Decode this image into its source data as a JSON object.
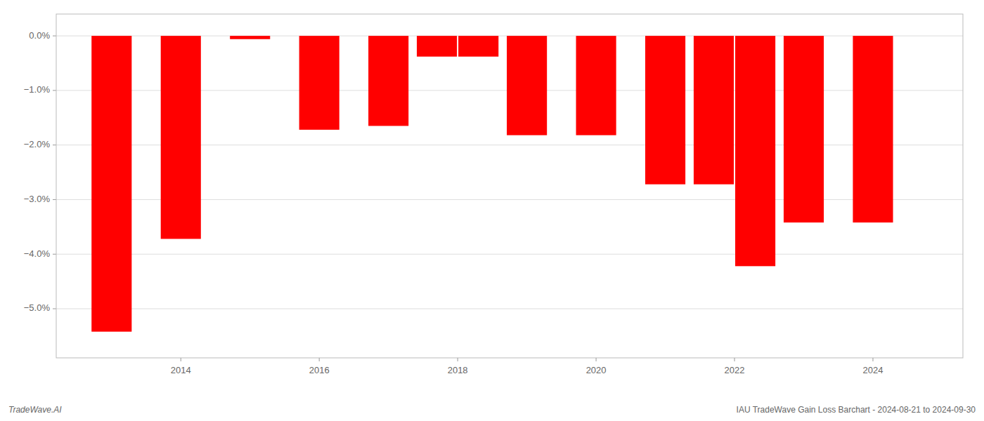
{
  "chart_data": {
    "type": "bar",
    "x": [
      2013,
      2014,
      2015,
      2016,
      2017,
      2017.7,
      2018.3,
      2019,
      2020,
      2021,
      2021.7,
      2022.3,
      2023,
      2024
    ],
    "values": [
      -5.42,
      -3.72,
      -0.06,
      -1.72,
      -1.65,
      -0.38,
      -0.38,
      -1.82,
      -1.82,
      -2.72,
      -2.72,
      -4.22,
      -3.42,
      -3.42
    ],
    "color": "#ff0000",
    "xlim": [
      2012.2,
      2025.3
    ],
    "xticks": [
      2014,
      2016,
      2018,
      2020,
      2022,
      2024
    ],
    "ylim": [
      -5.9,
      0.4
    ],
    "yticks": [
      {
        "value": 0.0,
        "label": "0.0%"
      },
      {
        "value": -1.0,
        "label": "−1.0%"
      },
      {
        "value": -2.0,
        "label": "−2.0%"
      },
      {
        "value": -3.0,
        "label": "−3.0%"
      },
      {
        "value": -4.0,
        "label": "−4.0%"
      },
      {
        "value": -5.0,
        "label": "−5.0%"
      }
    ],
    "grid": true,
    "annotations": [
      "TradeWave.AI",
      "IAU TradeWave Gain Loss Barchart - 2024-08-21 to 2024-09-30"
    ]
  }
}
